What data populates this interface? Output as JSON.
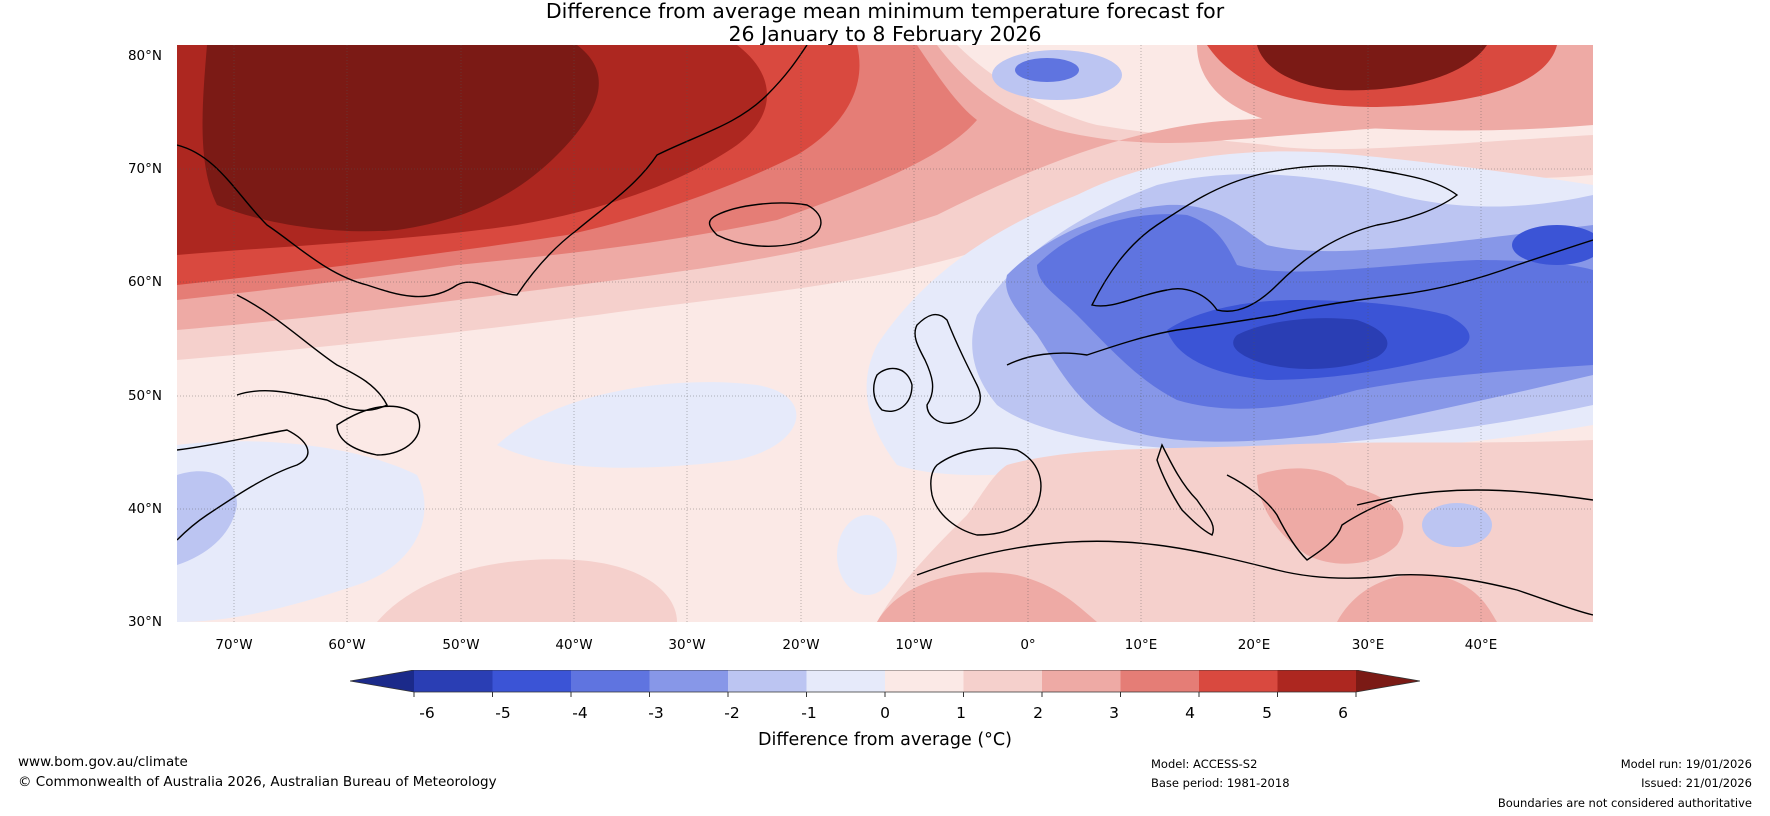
{
  "title": {
    "line1": "Difference from average mean minimum temperature forecast for",
    "line2": "26 January to 8 February 2026"
  },
  "map": {
    "region": "North Atlantic and Europe",
    "latitude_labels": [
      "80°N",
      "70°N",
      "60°N",
      "50°N",
      "40°N",
      "30°N"
    ],
    "longitude_labels": [
      "70°W",
      "60°W",
      "50°W",
      "40°W",
      "30°W",
      "20°W",
      "10°W",
      "0°",
      "10°E",
      "20°E",
      "30°E",
      "40°E"
    ]
  },
  "colorbar": {
    "ticks": [
      "-6",
      "-5",
      "-4",
      "-3",
      "-2",
      "-1",
      "0",
      "1",
      "2",
      "3",
      "4",
      "5",
      "6"
    ],
    "colors": [
      "#1b2a8a",
      "#2a3eb4",
      "#3b54d6",
      "#5f74e0",
      "#8797e8",
      "#bcc5f2",
      "#e6eafa",
      "#fbe9e6",
      "#f5d0cc",
      "#eeaaa5",
      "#e57d76",
      "#d9493f",
      "#ad2720",
      "#7b1a15"
    ],
    "label": "Difference from average (°C)"
  },
  "footer": {
    "website": "www.bom.gov.au/climate",
    "copyright": "© Commonwealth of Australia 2026, Australian Bureau of Meteorology",
    "model": "Model: ACCESS-S2",
    "base_period": "Base period: 1981-2018",
    "model_run": "Model run: 19/01/2026",
    "issued": "Issued: 21/01/2026",
    "disclaimer": "Boundaries are not considered authoritative"
  }
}
